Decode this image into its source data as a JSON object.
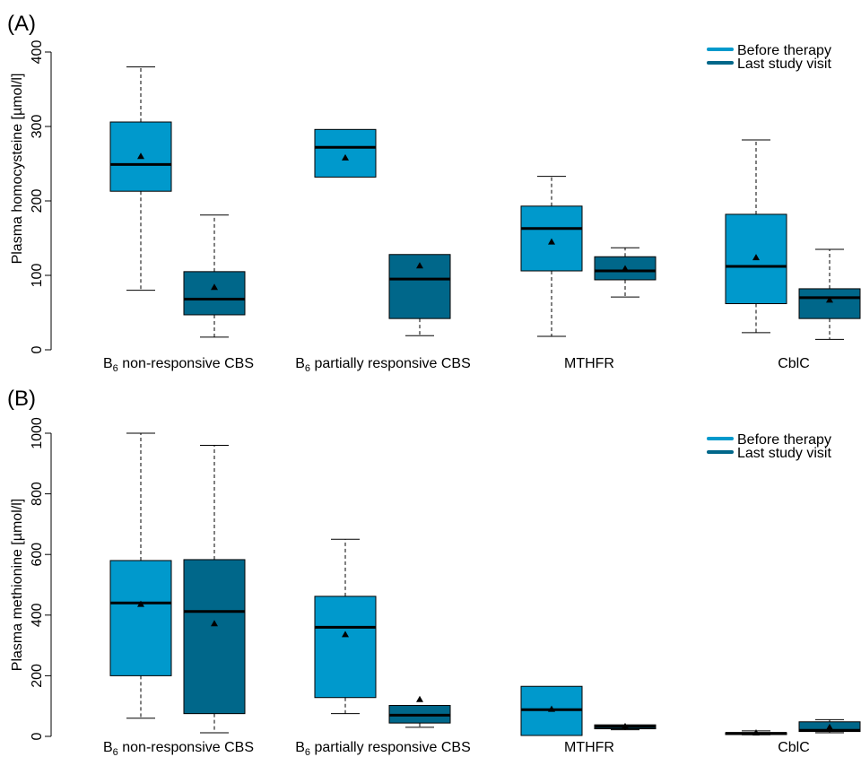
{
  "colors": {
    "before": "#0099CC",
    "last": "#00678A",
    "line": "#000000"
  },
  "chart_data": [
    {
      "panel_label": "(A)",
      "type": "box",
      "ylabel": "Plasma homocysteine [µmol/l]",
      "ylim": [
        0,
        400
      ],
      "yticks": [
        0,
        100,
        200,
        300,
        400
      ],
      "grid": false,
      "legend_position": "top-right",
      "legend": [
        "Before therapy",
        "Last study visit"
      ],
      "categories": [
        {
          "prefix": "B",
          "sub": "6",
          "suffix": " non-responsive CBS"
        },
        {
          "prefix": "B",
          "sub": "6",
          "suffix": " partially responsive CBS"
        },
        {
          "prefix": "MTHFR",
          "sub": "",
          "suffix": ""
        },
        {
          "prefix": "CblC",
          "sub": "",
          "suffix": ""
        }
      ],
      "series": [
        {
          "name": "Before therapy",
          "color": "#0099CC",
          "boxes": [
            {
              "min": 80,
              "q1": 213,
              "median": 249,
              "q3": 306,
              "max": 380,
              "mean": 260
            },
            {
              "min": 232,
              "q1": 232,
              "median": 272,
              "q3": 296,
              "max": 296,
              "mean": 258
            },
            {
              "min": 18,
              "q1": 106,
              "median": 163,
              "q3": 193,
              "max": 233,
              "mean": 145
            },
            {
              "min": 23,
              "q1": 62,
              "median": 112,
              "q3": 182,
              "max": 282,
              "mean": 124
            }
          ]
        },
        {
          "name": "Last study visit",
          "color": "#00678A",
          "boxes": [
            {
              "min": 17,
              "q1": 47,
              "median": 68,
              "q3": 105,
              "max": 181,
              "mean": 84
            },
            {
              "min": 19,
              "q1": 42,
              "median": 95,
              "q3": 128,
              "max": 128,
              "mean": 113
            },
            {
              "min": 71,
              "q1": 94,
              "median": 106,
              "q3": 125,
              "max": 137,
              "mean": 109
            },
            {
              "min": 14,
              "q1": 42,
              "median": 70,
              "q3": 82,
              "max": 135,
              "mean": 67
            }
          ]
        }
      ]
    },
    {
      "panel_label": "(B)",
      "type": "box",
      "ylabel": "Plasma methionine [µmol/l]",
      "ylim": [
        0,
        1000
      ],
      "yticks": [
        0,
        200,
        400,
        600,
        800,
        1000
      ],
      "grid": false,
      "legend_position": "top-right",
      "legend": [
        "Before therapy",
        "Last study visit"
      ],
      "categories": [
        {
          "prefix": "B",
          "sub": "6",
          "suffix": " non-responsive CBS"
        },
        {
          "prefix": "B",
          "sub": "6",
          "suffix": " partially responsive CBS"
        },
        {
          "prefix": "MTHFR",
          "sub": "",
          "suffix": ""
        },
        {
          "prefix": "CblC",
          "sub": "",
          "suffix": ""
        }
      ],
      "series": [
        {
          "name": "Before therapy",
          "color": "#0099CC",
          "boxes": [
            {
              "min": 60,
              "q1": 200,
              "median": 440,
              "q3": 580,
              "max": 1000,
              "mean": 436
            },
            {
              "min": 75,
              "q1": 128,
              "median": 360,
              "q3": 462,
              "max": 650,
              "mean": 336
            },
            {
              "min": 3,
              "q1": 3,
              "median": 88,
              "q3": 165,
              "max": 165,
              "mean": 90
            },
            {
              "min": 5,
              "q1": 6,
              "median": 10,
              "q3": 12,
              "max": 18,
              "mean": 12
            }
          ]
        },
        {
          "name": "Last study visit",
          "color": "#00678A",
          "boxes": [
            {
              "min": 12,
              "q1": 75,
              "median": 412,
              "q3": 583,
              "max": 960,
              "mean": 372
            },
            {
              "min": 30,
              "q1": 44,
              "median": 70,
              "q3": 102,
              "max": 102,
              "mean": 122
            },
            {
              "min": 22,
              "q1": 25,
              "median": 32,
              "q3": 38,
              "max": 38,
              "mean": 33
            },
            {
              "min": 12,
              "q1": 16,
              "median": 20,
              "q3": 48,
              "max": 55,
              "mean": 30
            }
          ]
        }
      ]
    }
  ]
}
